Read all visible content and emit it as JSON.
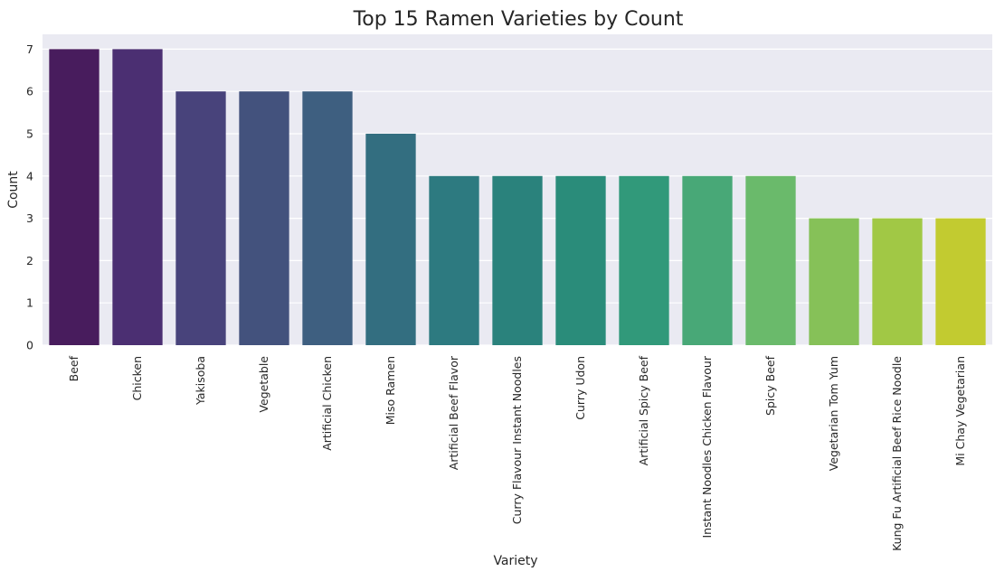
{
  "chart_data": {
    "type": "bar",
    "title": "Top 15 Ramen Varieties by Count",
    "xlabel": "Variety",
    "ylabel": "Count",
    "categories": [
      "Beef",
      "Chicken",
      "Yakisoba",
      "Vegetable",
      "Artificial Chicken",
      "Miso Ramen",
      "Artificial Beef Flavor",
      "Curry Flavour Instant Noodles",
      "Curry Udon",
      "Artificial Spicy Beef",
      "Instant Noodles Chicken Flavour",
      "Spicy Beef",
      "Vegetarian Tom Yum",
      "Kung Fu Artificial Beef Rice Noodle",
      "Mi Chay Vegetarian"
    ],
    "values": [
      7,
      7,
      6,
      6,
      6,
      5,
      4,
      4,
      4,
      4,
      4,
      4,
      3,
      3,
      3
    ],
    "ylim": [
      0,
      7.35
    ],
    "yticks": [
      0,
      1,
      2,
      3,
      4,
      5,
      6,
      7
    ],
    "grid": true,
    "background": "#eaeaf2",
    "colors": [
      "#481c5d",
      "#4b2f72",
      "#48437b",
      "#43527d",
      "#3e5f80",
      "#336e80",
      "#2d7a80",
      "#2a827c",
      "#2a8c7a",
      "#31997a",
      "#48a877",
      "#6aba6b",
      "#86c158",
      "#a1c845",
      "#c2cb30"
    ]
  }
}
